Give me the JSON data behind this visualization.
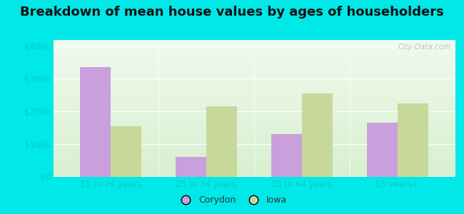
{
  "title": "Breakdown of mean house values by ages of householders",
  "categories": [
    "15 to 24 years",
    "25 to 34 years",
    "35 to 64 years",
    "65 years+"
  ],
  "corydon_values": [
    335000,
    60000,
    130000,
    165000
  ],
  "iowa_values": [
    155000,
    215000,
    255000,
    225000
  ],
  "corydon_color": "#c9a0dc",
  "iowa_color": "#c8d89a",
  "bar_width": 0.32,
  "ylim": [
    0,
    420000
  ],
  "yticks": [
    0,
    100000,
    200000,
    300000,
    400000
  ],
  "ytick_labels": [
    "$0",
    "$100k",
    "$200k",
    "$300k",
    "$400k"
  ],
  "legend_labels": [
    "Corydon",
    "Iowa"
  ],
  "background_top": "#f0faee",
  "background_bottom": "#d8f0d0",
  "outer_background": "#00e8e8",
  "title_fontsize": 13,
  "watermark_text": "City-Data.com",
  "grid_color": "#e8e8e8",
  "axis_line_color": "#bbbbbb",
  "tick_label_color": "#00cccc",
  "title_color": "#111111"
}
